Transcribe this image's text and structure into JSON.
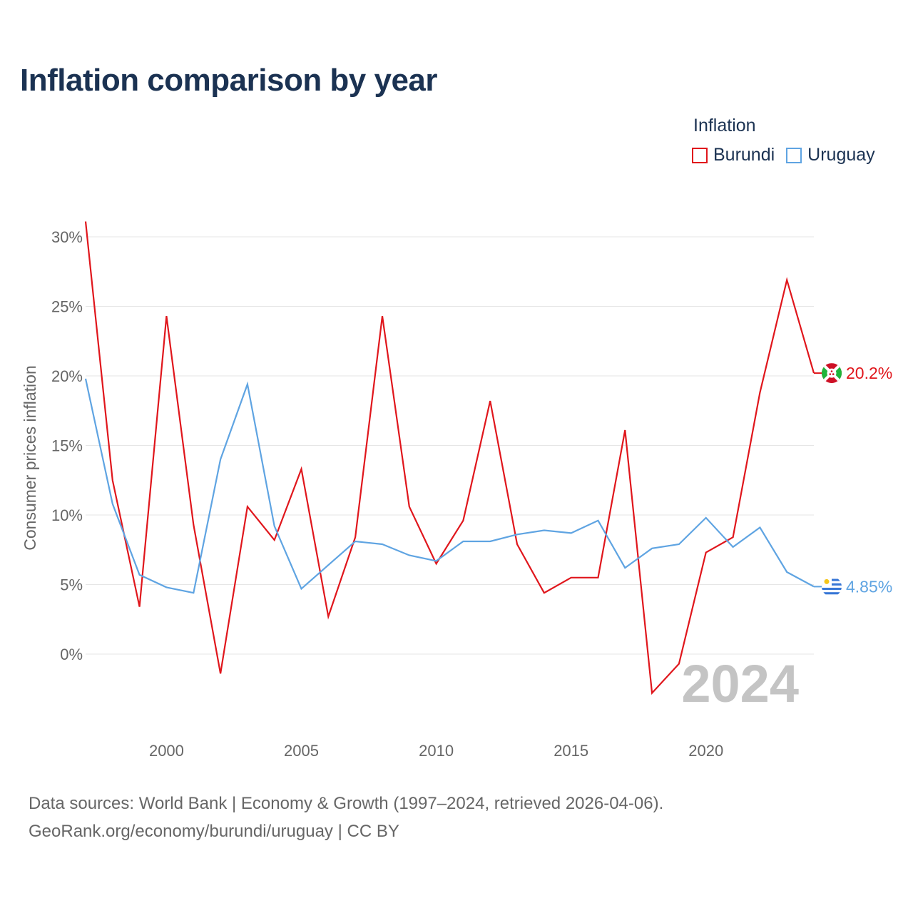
{
  "title": "Inflation comparison by year",
  "legend": {
    "title": "Inflation",
    "items": [
      {
        "name": "Burundi",
        "color": "#e0161c"
      },
      {
        "name": "Uruguay",
        "color": "#5fa4e2"
      }
    ]
  },
  "sources": {
    "line1": "Data sources: World Bank | Economy & Growth (1997–2024, retrieved 2026-04-06).",
    "line2": "GeoRank.org/economy/burundi/uruguay | CC BY"
  },
  "chart_data": {
    "type": "line",
    "title": "Inflation comparison by year",
    "xlabel": "",
    "ylabel": "Consumer prices inflation",
    "x": [
      1997,
      1998,
      1999,
      2000,
      2001,
      2002,
      2003,
      2004,
      2005,
      2006,
      2007,
      2008,
      2009,
      2010,
      2011,
      2012,
      2013,
      2014,
      2015,
      2016,
      2017,
      2018,
      2019,
      2020,
      2021,
      2022,
      2023,
      2024
    ],
    "xlim": [
      1997,
      2024
    ],
    "ylim": [
      -5,
      31.1
    ],
    "x_ticks": [
      2000,
      2005,
      2010,
      2015,
      2020
    ],
    "y_ticks": [
      0,
      5,
      10,
      15,
      20,
      25,
      30
    ],
    "y_tick_labels": [
      "0%",
      "5%",
      "10%",
      "15%",
      "20%",
      "25%",
      "30%"
    ],
    "grid": true,
    "watermark": "2024",
    "series": [
      {
        "name": "Burundi",
        "color": "#e0161c",
        "values": [
          31.1,
          12.5,
          3.4,
          24.3,
          9.3,
          -1.4,
          10.6,
          8.2,
          13.3,
          2.7,
          8.4,
          24.3,
          10.6,
          6.5,
          9.6,
          18.2,
          7.9,
          4.4,
          5.5,
          5.5,
          16.1,
          -2.8,
          -0.7,
          7.3,
          8.4,
          18.8,
          26.9,
          20.2
        ],
        "end_label": "20.2%",
        "flag": "burundi"
      },
      {
        "name": "Uruguay",
        "color": "#5fa4e2",
        "values": [
          19.8,
          10.8,
          5.7,
          4.8,
          4.4,
          14.0,
          19.4,
          9.2,
          4.7,
          6.4,
          8.1,
          7.9,
          7.1,
          6.7,
          8.1,
          8.1,
          8.6,
          8.9,
          8.7,
          9.6,
          6.2,
          7.6,
          7.9,
          9.8,
          7.7,
          9.1,
          5.9,
          4.85
        ],
        "end_label": "4.85%",
        "flag": "uruguay"
      }
    ]
  }
}
